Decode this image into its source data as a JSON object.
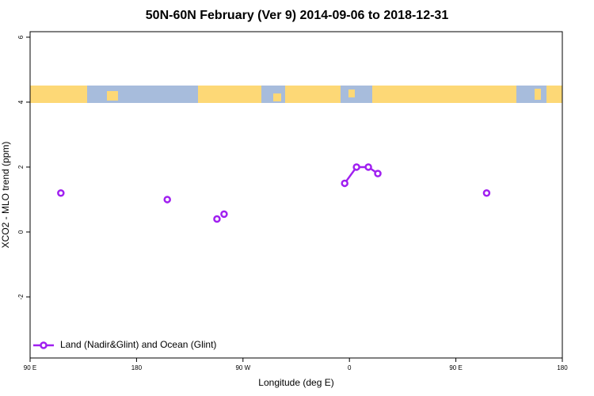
{
  "chart_data": {
    "type": "line",
    "title": "50N-60N February (Ver 9)   2014-09-06 to 2018-12-31",
    "x_label": "Longitude (deg E)",
    "y_label": "XCO2 - MLO trend (ppm)",
    "x": [
      116,
      null,
      206,
      null,
      248,
      null,
      254,
      null,
      356,
      366,
      376,
      384,
      null,
      476
    ],
    "series": [
      {
        "name": "Land (Nadir&Glint) and Ocean (Glint)",
        "color": "#a020f0",
        "values": [
          1.2,
          null,
          1.0,
          null,
          0.4,
          null,
          0.55,
          null,
          1.5,
          2.0,
          2.0,
          1.8,
          null,
          1.2
        ]
      }
    ],
    "xlim": [
      90,
      540
    ],
    "xticks": [
      {
        "value": 90,
        "label": "90 E"
      },
      {
        "value": 180,
        "label": "180"
      },
      {
        "value": 270,
        "label": "90 W"
      },
      {
        "value": 360,
        "label": "0"
      },
      {
        "value": 450,
        "label": "90 E"
      },
      {
        "value": 540,
        "label": "180"
      }
    ],
    "ylim": [
      -3.88,
      6.17
    ],
    "yticks": [
      -2,
      0,
      2,
      4,
      6
    ],
    "legend": "bottom-left"
  }
}
